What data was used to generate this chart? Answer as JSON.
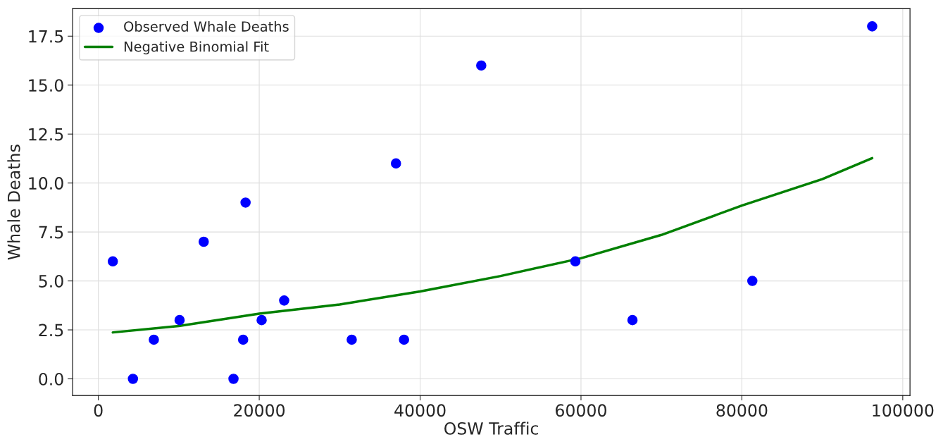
{
  "chart_data": {
    "type": "scatter",
    "xlabel": "OSW Traffic",
    "ylabel": "Whale Deaths",
    "xlim": [
      -3200,
      100900
    ],
    "ylim": [
      -0.85,
      18.9
    ],
    "xticks": [
      0,
      20000,
      40000,
      60000,
      80000,
      100000
    ],
    "yticks": [
      {
        "value": 0,
        "label": "0.0"
      },
      {
        "value": 2.5,
        "label": "2.5"
      },
      {
        "value": 5,
        "label": "5.0"
      },
      {
        "value": 7.5,
        "label": "7.5"
      },
      {
        "value": 10,
        "label": "10.0"
      },
      {
        "value": 12.5,
        "label": "12.5"
      },
      {
        "value": 15,
        "label": "15.0"
      },
      {
        "value": 17.5,
        "label": "17.5"
      }
    ],
    "grid": true,
    "legend": "top left",
    "series": [
      {
        "name": "Observed Whale Deaths",
        "marker": "circle",
        "color": "#0000ff",
        "x": [
          1800,
          4300,
          6900,
          10100,
          13100,
          16800,
          18000,
          18300,
          20300,
          23100,
          31500,
          37000,
          38000,
          47600,
          59300,
          66400,
          81300,
          96200
        ],
        "values": [
          6,
          0,
          2,
          3,
          7,
          0,
          2,
          9,
          3,
          4,
          2,
          11,
          2,
          16,
          6,
          3,
          5,
          18
        ]
      },
      {
        "name": "Negative Binomial Fit",
        "type": "line",
        "line_style": "solid",
        "color": "#008000",
        "x": [
          1800,
          10000,
          20000,
          30000,
          40000,
          50000,
          60000,
          70000,
          80000,
          90000,
          96200
        ],
        "values": [
          2.37,
          2.7,
          3.33,
          3.8,
          4.46,
          5.25,
          6.16,
          7.35,
          8.85,
          10.2,
          11.27
        ]
      }
    ]
  }
}
